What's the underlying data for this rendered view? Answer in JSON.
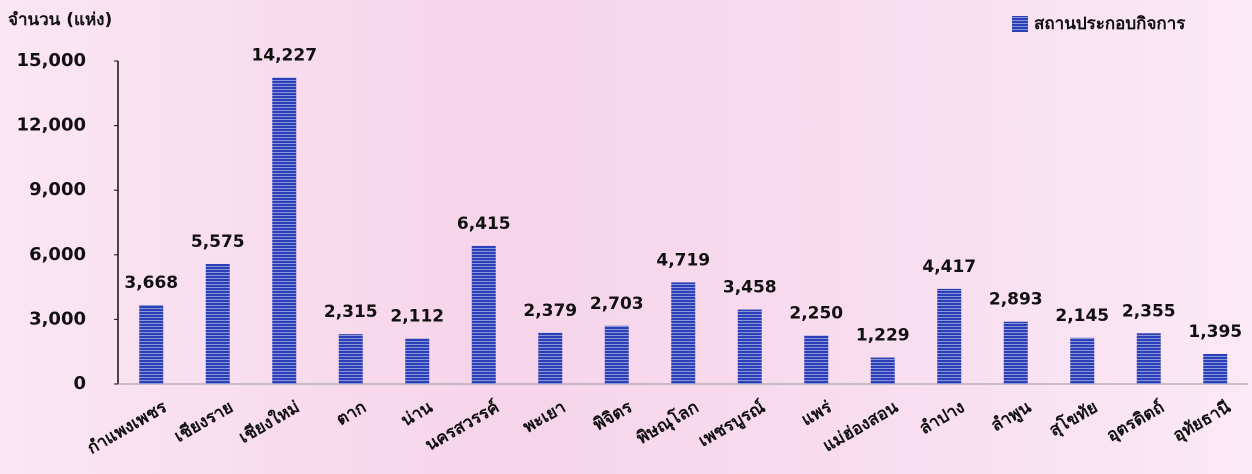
{
  "chart_data": {
    "type": "bar",
    "y_label": "จำนวน (แห่ง)",
    "categories": [
      "กำแพงเพชร",
      "เชียงราย",
      "เชียงใหม่",
      "ตาก",
      "น่าน",
      "นครสวรรค์",
      "พะเยา",
      "พิจิตร",
      "พิษณุโลก",
      "เพชรบูรณ์",
      "แพร่",
      "แม่ฮ่องสอน",
      "ลำปาง",
      "ลำพูน",
      "สุโขทัย",
      "อุตรดิตถ์",
      "อุทัยธานี"
    ],
    "series": [
      {
        "name": "สถานประกอบกิจการ",
        "color": "#2b3fb8",
        "values": [
          3668,
          5575,
          14227,
          2315,
          2112,
          6415,
          2379,
          2703,
          4719,
          3458,
          2250,
          1229,
          4417,
          2893,
          2145,
          2355,
          1395
        ],
        "value_labels": [
          "3,668",
          "5,575",
          "14,227",
          "2,315",
          "2,112",
          "6,415",
          "2,379",
          "2,703",
          "4,719",
          "3,458",
          "2,250",
          "1,229",
          "4,417",
          "2,893",
          "2,145",
          "2,355",
          "1,395"
        ]
      }
    ],
    "ylim": [
      0,
      15000
    ],
    "yticks": [
      0,
      {
        "value": 3000,
        "label": "3,000"
      },
      {
        "value": 6000,
        "label": "6,000"
      },
      {
        "value": 9000,
        "label": "9,000"
      },
      {
        "value": 12000,
        "label": "12,000"
      },
      {
        "value": 15000,
        "label": "15,000"
      }
    ],
    "legend": "upper right"
  }
}
